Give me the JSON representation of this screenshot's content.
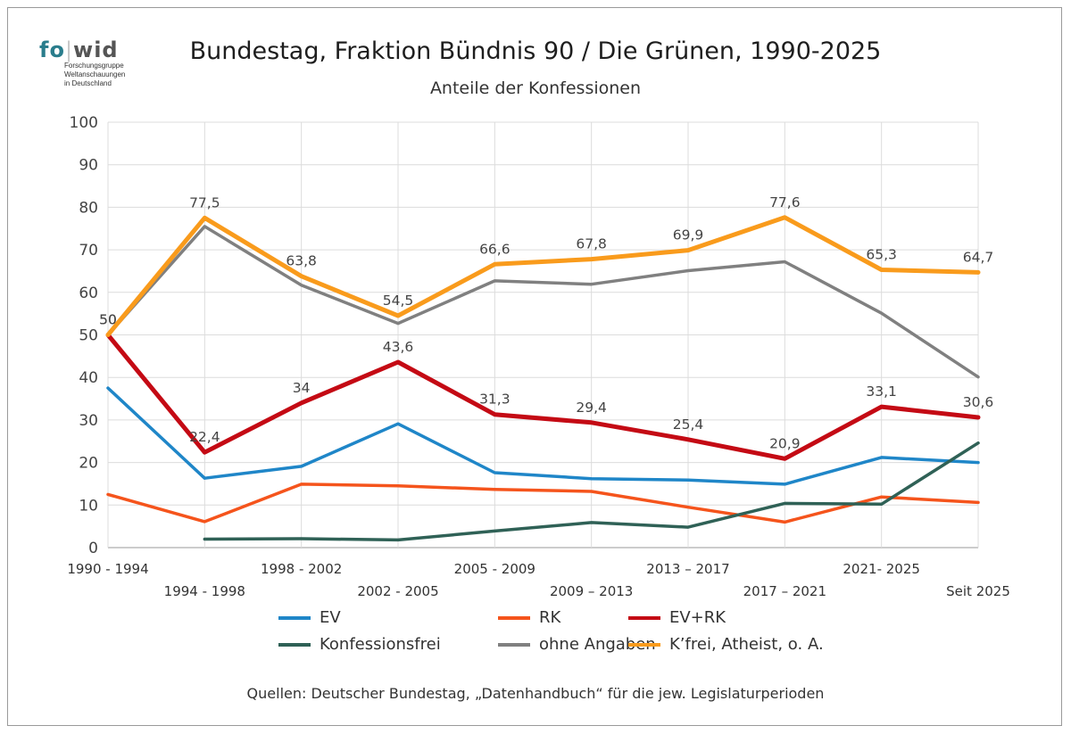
{
  "logo": {
    "fo": "fo",
    "wid": "wid",
    "lines": [
      "Forschungsgruppe",
      "Weltanschauungen",
      "in Deutschland"
    ]
  },
  "header": {
    "title": "Bundestag, Fraktion Bündnis 90 / Die Grünen, 1990-2025",
    "subtitle": "Anteile der Konfessionen"
  },
  "source": "Quellen: Deutscher Bundestag, „Datenhandbuch“ für die jew. Legislaturperioden",
  "chart_data": {
    "type": "line",
    "title": "Bundestag, Fraktion Bündnis 90 / Die Grünen, 1990-2025",
    "subtitle": "Anteile der Konfessionen",
    "categories": [
      "1990 - 1994",
      "1994 - 1998",
      "1998 - 2002",
      "2002 - 2005",
      "2005 - 2009",
      "2009 – 2013",
      "2013 – 2017",
      "2017 – 2021",
      "2021- 2025",
      "Seit 2025"
    ],
    "ylim": [
      0,
      100
    ],
    "yticks": [
      0,
      10,
      20,
      30,
      40,
      50,
      60,
      70,
      80,
      90,
      100
    ],
    "grid": true,
    "legend_position": "bottom",
    "series": [
      {
        "name": "EV",
        "color": "#1f86c8",
        "values": [
          37.5,
          16.3,
          19.1,
          29.1,
          17.6,
          16.2,
          15.9,
          14.9,
          21.2,
          20.0
        ]
      },
      {
        "name": "RK",
        "color": "#f5541c",
        "values": [
          12.5,
          6.1,
          14.9,
          14.5,
          13.7,
          13.2,
          9.5,
          6.0,
          11.9,
          10.6
        ]
      },
      {
        "name": "EV+RK",
        "color": "#c40a14",
        "values": [
          50,
          22.4,
          34,
          43.6,
          31.3,
          29.4,
          25.4,
          20.9,
          33.1,
          30.6
        ],
        "show_labels": true
      },
      {
        "name": "Konfessionsfrei",
        "color": "#2f6156",
        "values": [
          null,
          2.0,
          2.1,
          1.8,
          3.9,
          5.9,
          4.8,
          10.4,
          10.2,
          24.6
        ]
      },
      {
        "name": "ohne Angaben",
        "color": "#808080",
        "values": [
          50,
          75.5,
          61.7,
          52.7,
          62.7,
          61.9,
          65.1,
          67.2,
          55.1,
          40.1
        ]
      },
      {
        "name": "K’frei, Atheist, o. A.",
        "color": "#f99b1c",
        "values": [
          50,
          77.5,
          63.8,
          54.5,
          66.6,
          67.8,
          69.9,
          77.6,
          65.3,
          64.7
        ],
        "show_labels": true
      }
    ]
  }
}
